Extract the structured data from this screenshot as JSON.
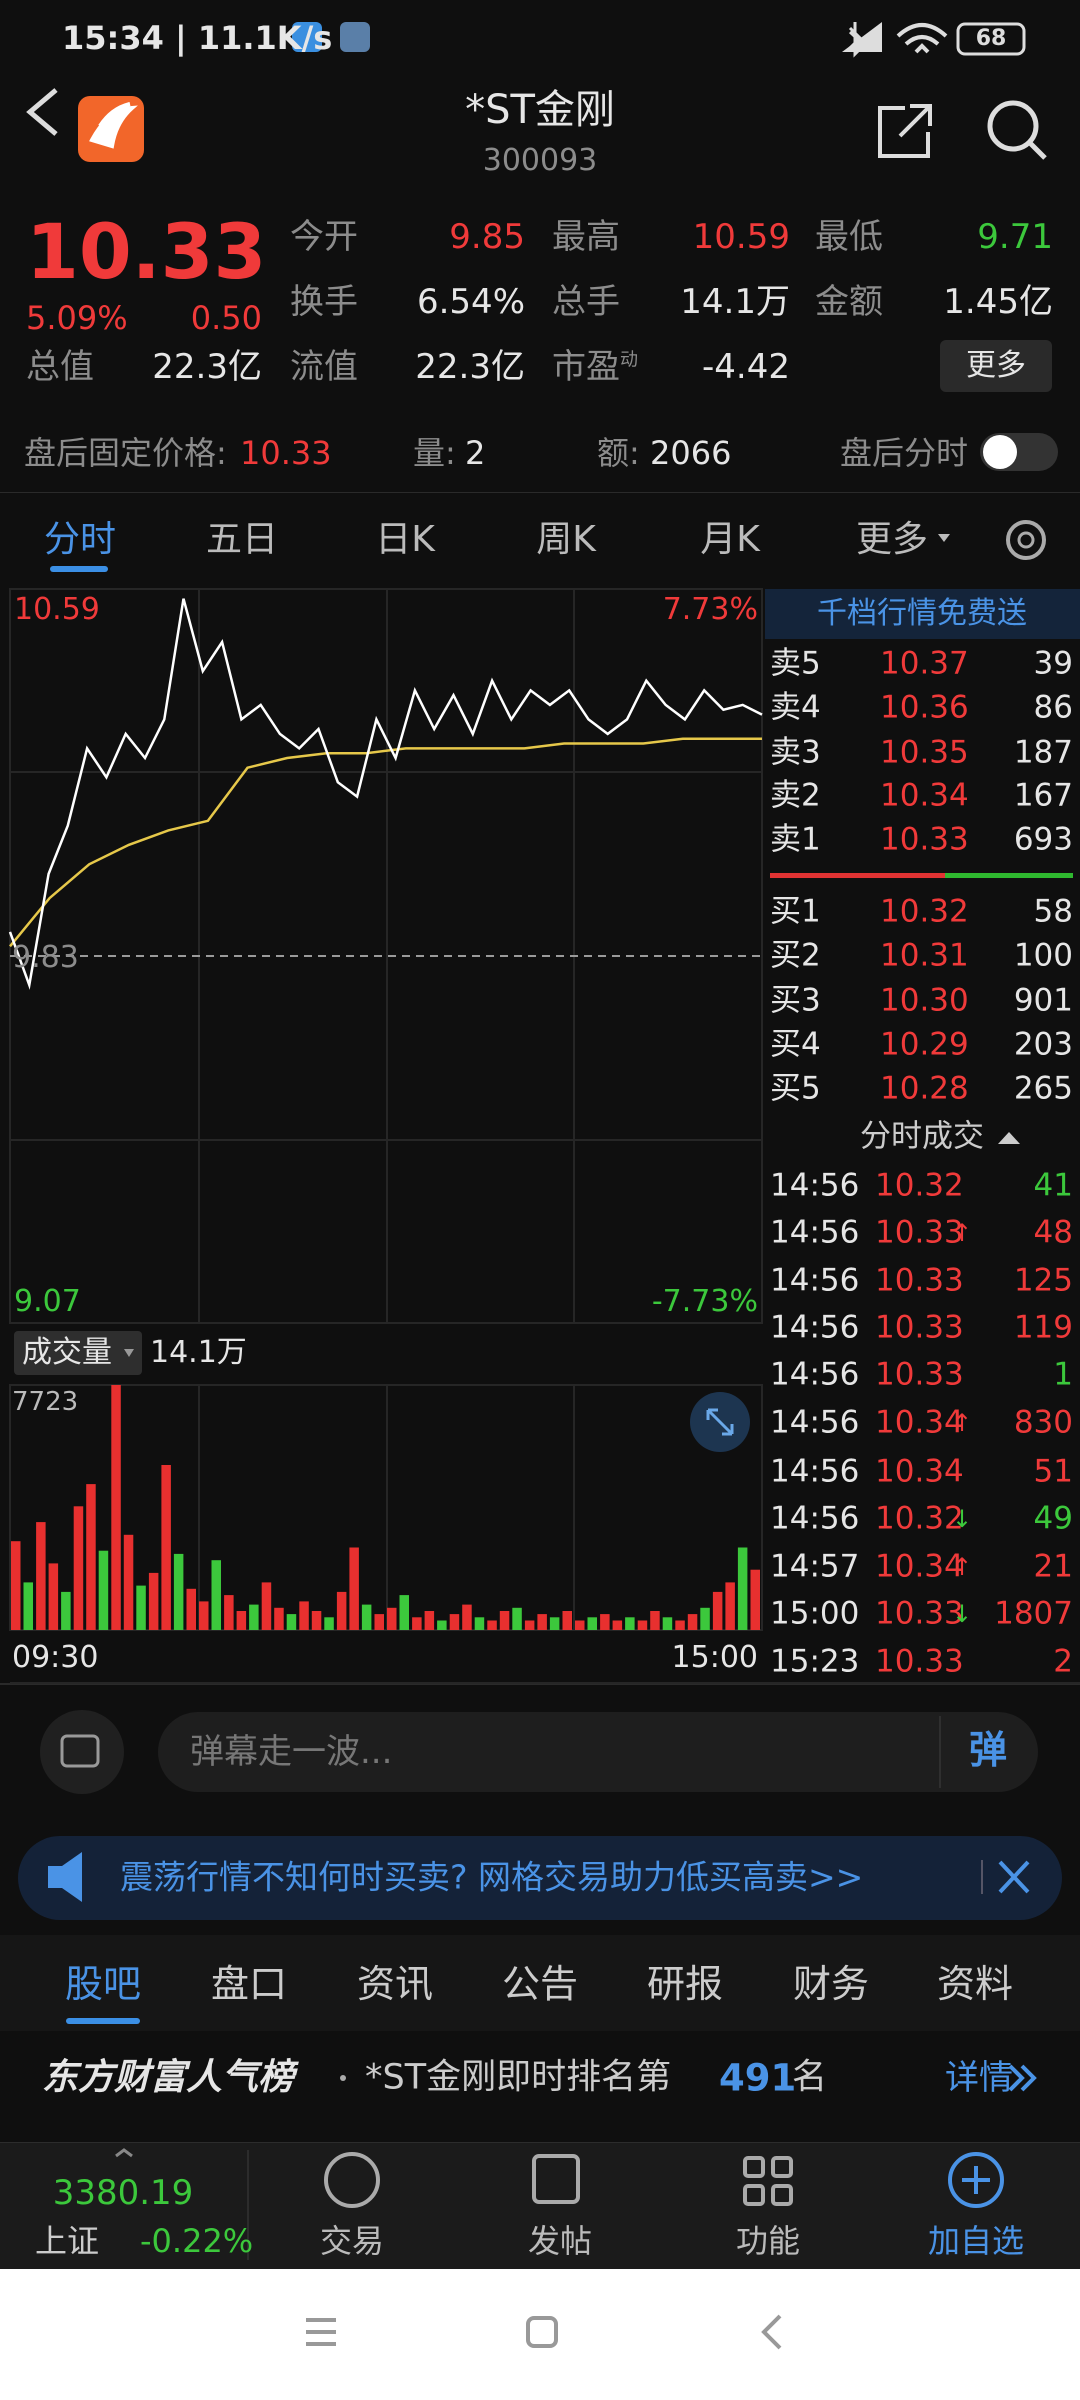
{
  "status": {
    "text": "15:34 | 11.1K/s",
    "battery": "68"
  },
  "header": {
    "title": "*ST金刚",
    "code": "300093"
  },
  "quote": {
    "price": "10.33",
    "change_pct": "5.09%",
    "change": "0.50",
    "total_value_label": "总值",
    "total_value": "22.3亿",
    "fields": [
      {
        "label": "今开",
        "value": "9.85",
        "color": "red"
      },
      {
        "label": "最高",
        "value": "10.59",
        "color": "red"
      },
      {
        "label": "最低",
        "value": "9.71",
        "color": "green"
      },
      {
        "label": "换手",
        "value": "6.54%",
        "color": "white"
      },
      {
        "label": "总手",
        "value": "14.1万",
        "color": "white"
      },
      {
        "label": "金额",
        "value": "1.45亿",
        "color": "white"
      },
      {
        "label": "流值",
        "value": "22.3亿",
        "color": "white"
      },
      {
        "label": "市盈",
        "value": "-4.42",
        "color": "white",
        "sup": "动"
      }
    ],
    "more": "更多"
  },
  "after_hours": {
    "price_label": "盘后固定价格:",
    "price": "10.33",
    "vol_label": "量:",
    "vol": "2",
    "amount_label": "额:",
    "amount": "2066",
    "chart_label": "盘后分时"
  },
  "chart_tabs": [
    "分时",
    "五日",
    "日K",
    "周K",
    "月K",
    "更多"
  ],
  "intraday": {
    "price_high": 10.59,
    "price_mid": 9.83,
    "price_low": 9.07,
    "pct_high": "7.73%",
    "pct_low": "-7.73%",
    "price": [
      9.88,
      9.77,
      10.0,
      10.1,
      10.26,
      10.2,
      10.29,
      10.24,
      10.32,
      10.57,
      10.42,
      10.48,
      10.32,
      10.35,
      10.29,
      10.26,
      10.3,
      10.19,
      10.16,
      10.32,
      10.24,
      10.38,
      10.3,
      10.37,
      10.29,
      10.4,
      10.32,
      10.38,
      10.35,
      10.38,
      10.32,
      10.29,
      10.32,
      10.4,
      10.35,
      10.32,
      10.38,
      10.34,
      10.35,
      10.33
    ],
    "average": [
      9.85,
      9.95,
      10.02,
      10.06,
      10.09,
      10.11,
      10.22,
      10.24,
      10.25,
      10.25,
      10.26,
      10.26,
      10.26,
      10.26,
      10.27,
      10.27,
      10.27,
      10.28,
      10.28,
      10.28
    ],
    "price_color": "#ffffff",
    "average_color": "#e6c84a",
    "volume_label": "成交量",
    "volume_total": "14.1万",
    "volume_max": 7723,
    "volume": [
      2800,
      1500,
      3400,
      2100,
      1200,
      3900,
      4600,
      2500,
      7723,
      3000,
      1400,
      1800,
      5200,
      2400,
      1300,
      900,
      2200,
      1100,
      600,
      800,
      1500,
      700,
      500,
      900,
      600,
      400,
      1200,
      2600,
      800,
      500,
      700,
      1100,
      400,
      600,
      300,
      500,
      800,
      400,
      300,
      600,
      700,
      300,
      500,
      400,
      600,
      300,
      400,
      500,
      300,
      400,
      300,
      600,
      400,
      300,
      500,
      700,
      1200,
      1500,
      2600,
      1900
    ],
    "time_start": "09:30",
    "time_end": "15:00"
  },
  "order_book": {
    "title": "千档行情免费送",
    "sells": [
      {
        "label": "卖5",
        "price": "10.37",
        "vol": "39"
      },
      {
        "label": "卖4",
        "price": "10.36",
        "vol": "86"
      },
      {
        "label": "卖3",
        "price": "10.35",
        "vol": "187"
      },
      {
        "label": "卖2",
        "price": "10.34",
        "vol": "167"
      },
      {
        "label": "卖1",
        "price": "10.33",
        "vol": "693"
      }
    ],
    "buys": [
      {
        "label": "买1",
        "price": "10.32",
        "vol": "58"
      },
      {
        "label": "买2",
        "price": "10.31",
        "vol": "100"
      },
      {
        "label": "买3",
        "price": "10.30",
        "vol": "901"
      },
      {
        "label": "买4",
        "price": "10.29",
        "vol": "203"
      },
      {
        "label": "买5",
        "price": "10.28",
        "vol": "265"
      }
    ]
  },
  "trades": {
    "title": "分时成交",
    "rows": [
      {
        "time": "14:56",
        "price": "10.32",
        "vol": "41",
        "color": "green"
      },
      {
        "time": "14:56",
        "price": "10.33",
        "dir": "↑",
        "vol": "48",
        "color": "red"
      },
      {
        "time": "14:56",
        "price": "10.33",
        "vol": "125",
        "color": "red"
      },
      {
        "time": "14:56",
        "price": "10.33",
        "vol": "119",
        "color": "red"
      },
      {
        "time": "14:56",
        "price": "10.33",
        "vol": "1",
        "color": "green"
      },
      {
        "time": "14:56",
        "price": "10.34",
        "dir": "↑",
        "vol": "830",
        "color": "red"
      },
      {
        "time": "14:56",
        "price": "10.34",
        "vol": "51",
        "color": "red"
      },
      {
        "time": "14:56",
        "price": "10.32",
        "dir": "↓",
        "vol": "49",
        "color": "green"
      },
      {
        "time": "14:57",
        "price": "10.34",
        "dir": "↑",
        "vol": "21",
        "color": "red"
      },
      {
        "time": "15:00",
        "price": "10.33",
        "dir": "↓",
        "vol": "1807",
        "color": "red"
      },
      {
        "time": "15:23",
        "price": "10.33",
        "vol": "2",
        "color": "red"
      }
    ]
  },
  "comment": {
    "placeholder": "弹幕走一波...",
    "button": "弹"
  },
  "banner": {
    "text": "震荡行情不知何时买卖? 网格交易助力低买高卖>>"
  },
  "info_tabs": [
    "股吧",
    "盘口",
    "资讯",
    "公告",
    "研报",
    "财务",
    "资料"
  ],
  "ranking": {
    "brand": "东方财富人气榜",
    "text": "*ST金刚即时排名第",
    "rank": "491",
    "unit": "名",
    "detail": "详情"
  },
  "bottom_nav": {
    "index_value": "3380.19",
    "index_name": "上证",
    "index_change": "-0.22%",
    "items": [
      "交易",
      "发帖",
      "功能",
      "加自选"
    ]
  }
}
